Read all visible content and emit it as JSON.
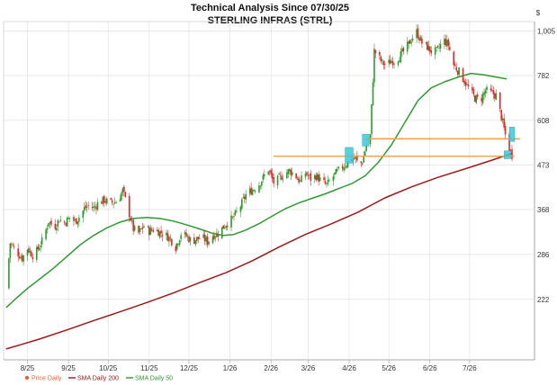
{
  "chart_data": {
    "type": "candlestick",
    "title": "Technical Analysis Since 07/30/25",
    "subtitle": "STERLING INFRAS (STRL)",
    "currency_symbol": "$",
    "y_scale": "log",
    "ylim": [
      158,
      1060
    ],
    "y_ticks": [
      222,
      286,
      368,
      473,
      608,
      782,
      1005
    ],
    "x_tick_labels": [
      "8/25",
      "9/25",
      "10/25",
      "11/25",
      "12/25",
      "1/26",
      "2/26",
      "3/26",
      "4/26",
      "5/26",
      "6/26",
      "7/26"
    ],
    "x_tick_days": [
      0,
      31,
      61,
      92,
      122,
      153,
      184,
      212,
      243,
      273,
      304,
      334
    ],
    "x_range_days": [
      -18,
      383
    ],
    "legend": [
      {
        "label": "Price Daily",
        "color": "#e8622c"
      },
      {
        "label": "SMA Daily 200",
        "color": "#a01818"
      },
      {
        "label": "SMA Daily 50",
        "color": "#2e9b2e"
      }
    ],
    "colors": {
      "up": "#2e9b2e",
      "down": "#e02a2a",
      "sma50": "#2e9b2e",
      "sma200": "#a01818",
      "support": "#f5a04a",
      "highlight": "#3cc8d8",
      "grid": "#dddddd"
    },
    "price_path": [
      [
        -16,
        236
      ],
      [
        -13,
        305
      ],
      [
        -8,
        290
      ],
      [
        -4,
        280
      ],
      [
        0,
        296
      ],
      [
        5,
        282
      ],
      [
        9,
        300
      ],
      [
        12,
        312
      ],
      [
        16,
        345
      ],
      [
        20,
        332
      ],
      [
        24,
        348
      ],
      [
        28,
        342
      ],
      [
        32,
        352
      ],
      [
        36,
        344
      ],
      [
        40,
        356
      ],
      [
        43,
        370
      ],
      [
        46,
        376
      ],
      [
        50,
        372
      ],
      [
        54,
        384
      ],
      [
        58,
        388
      ],
      [
        63,
        382
      ],
      [
        68,
        386
      ],
      [
        72,
        410
      ],
      [
        76,
        370
      ],
      [
        80,
        330
      ],
      [
        84,
        322
      ],
      [
        88,
        336
      ],
      [
        92,
        326
      ],
      [
        96,
        330
      ],
      [
        100,
        324
      ],
      [
        104,
        320
      ],
      [
        108,
        312
      ],
      [
        112,
        298
      ],
      [
        116,
        322
      ],
      [
        120,
        317
      ],
      [
        124,
        308
      ],
      [
        128,
        312
      ],
      [
        132,
        315
      ],
      [
        136,
        307
      ],
      [
        140,
        318
      ],
      [
        144,
        322
      ],
      [
        150,
        340
      ],
      [
        155,
        350
      ],
      [
        160,
        370
      ],
      [
        165,
        400
      ],
      [
        170,
        412
      ],
      [
        174,
        420
      ],
      [
        178,
        440
      ],
      [
        182,
        462
      ],
      [
        186,
        428
      ],
      [
        190,
        438
      ],
      [
        194,
        450
      ],
      [
        198,
        458
      ],
      [
        202,
        448
      ],
      [
        206,
        430
      ],
      [
        210,
        452
      ],
      [
        214,
        438
      ],
      [
        218,
        445
      ],
      [
        222,
        432
      ],
      [
        226,
        422
      ],
      [
        230,
        440
      ],
      [
        234,
        455
      ],
      [
        238,
        468
      ],
      [
        242,
        480
      ],
      [
        245,
        488
      ],
      [
        248,
        490
      ],
      [
        250,
        472
      ],
      [
        253,
        482
      ],
      [
        257,
        544
      ],
      [
        259,
        558
      ],
      [
        262,
        900
      ],
      [
        265,
        870
      ],
      [
        268,
        840
      ],
      [
        271,
        830
      ],
      [
        275,
        850
      ],
      [
        278,
        850
      ],
      [
        282,
        880
      ],
      [
        286,
        910
      ],
      [
        290,
        960
      ],
      [
        294,
        1000
      ],
      [
        298,
        940
      ],
      [
        302,
        920
      ],
      [
        306,
        890
      ],
      [
        310,
        900
      ],
      [
        314,
        960
      ],
      [
        318,
        930
      ],
      [
        322,
        830
      ],
      [
        326,
        800
      ],
      [
        330,
        760
      ],
      [
        334,
        720
      ],
      [
        338,
        690
      ],
      [
        342,
        680
      ],
      [
        346,
        720
      ],
      [
        350,
        710
      ],
      [
        354,
        700
      ],
      [
        358,
        620
      ],
      [
        361,
        560
      ],
      [
        364,
        520
      ],
      [
        366,
        500
      ]
    ],
    "sma50_path": [
      [
        -16,
        212
      ],
      [
        -8,
        224
      ],
      [
        0,
        236
      ],
      [
        10,
        250
      ],
      [
        20,
        265
      ],
      [
        30,
        283
      ],
      [
        40,
        302
      ],
      [
        50,
        318
      ],
      [
        60,
        332
      ],
      [
        70,
        343
      ],
      [
        80,
        350
      ],
      [
        90,
        352
      ],
      [
        100,
        350
      ],
      [
        110,
        345
      ],
      [
        120,
        338
      ],
      [
        130,
        330
      ],
      [
        140,
        322
      ],
      [
        148,
        318
      ],
      [
        156,
        320
      ],
      [
        165,
        328
      ],
      [
        175,
        340
      ],
      [
        185,
        355
      ],
      [
        195,
        370
      ],
      [
        205,
        382
      ],
      [
        215,
        392
      ],
      [
        225,
        402
      ],
      [
        235,
        414
      ],
      [
        245,
        426
      ],
      [
        255,
        445
      ],
      [
        265,
        480
      ],
      [
        275,
        530
      ],
      [
        285,
        600
      ],
      [
        295,
        680
      ],
      [
        305,
        730
      ],
      [
        315,
        755
      ],
      [
        325,
        775
      ],
      [
        335,
        792
      ],
      [
        345,
        785
      ],
      [
        355,
        775
      ],
      [
        362,
        768
      ]
    ],
    "sma200_path": [
      [
        -16,
        168
      ],
      [
        -5,
        172
      ],
      [
        10,
        178
      ],
      [
        30,
        187
      ],
      [
        50,
        197
      ],
      [
        70,
        207
      ],
      [
        90,
        218
      ],
      [
        110,
        230
      ],
      [
        130,
        244
      ],
      [
        150,
        258
      ],
      [
        170,
        276
      ],
      [
        190,
        298
      ],
      [
        210,
        320
      ],
      [
        230,
        340
      ],
      [
        250,
        363
      ],
      [
        270,
        393
      ],
      [
        290,
        418
      ],
      [
        310,
        441
      ],
      [
        330,
        462
      ],
      [
        350,
        485
      ],
      [
        366,
        505
      ]
    ],
    "support_lines": [
      {
        "x_start": 256,
        "x_end": 372,
        "value": 548
      },
      {
        "x_start": 186,
        "x_end": 368,
        "value": 497
      }
    ],
    "highlight_boxes": [
      {
        "x_start": 253,
        "x_end": 258,
        "low": 526,
        "high": 562
      },
      {
        "x_start": 240,
        "x_end": 246,
        "low": 478,
        "high": 522
      },
      {
        "x_start": 364,
        "x_end": 368,
        "low": 540,
        "high": 585
      },
      {
        "x_start": 360,
        "x_end": 365,
        "low": 490,
        "high": 512
      }
    ]
  }
}
